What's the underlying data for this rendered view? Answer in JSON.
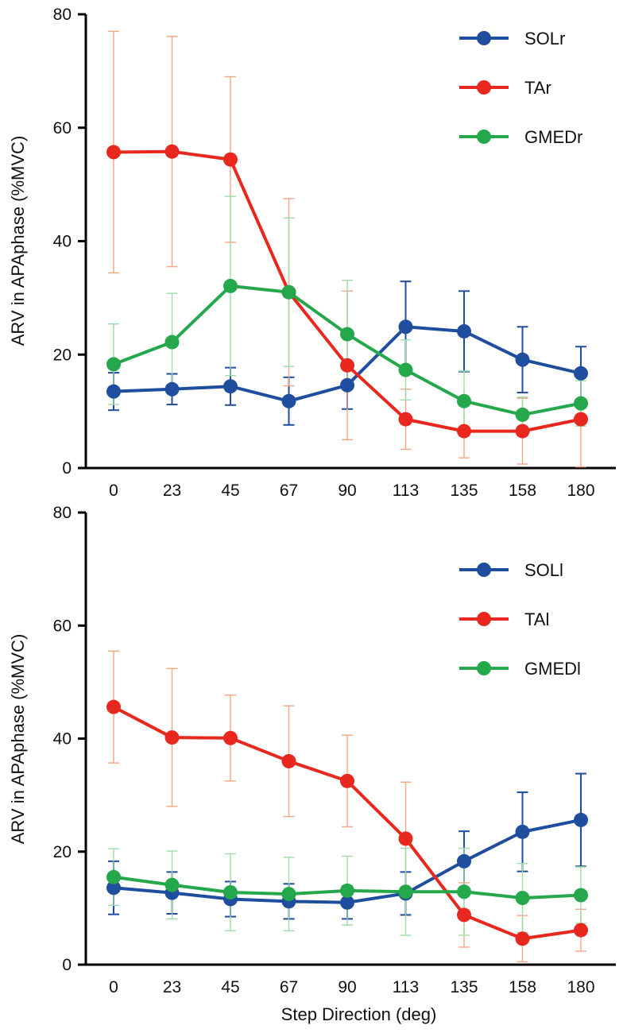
{
  "chart_data": [
    {
      "type": "line",
      "title": "",
      "xlabel": "",
      "ylabel": "ARV in APAphase (%MVC)",
      "categories": [
        "0",
        "23",
        "45",
        "67",
        "90",
        "113",
        "135",
        "158",
        "180"
      ],
      "ylim": [
        0,
        80
      ],
      "yticks": [
        0,
        20,
        40,
        60,
        80
      ],
      "legend_position": "top-right",
      "series": [
        {
          "name": "SOLr",
          "color": "#1f4e9e",
          "values": [
            13.5,
            13.9,
            14.4,
            11.8,
            14.6,
            24.9,
            24.1,
            19.1,
            16.7
          ],
          "errors": [
            3.3,
            2.7,
            3.3,
            4.2,
            4.2,
            8.0,
            7.1,
            5.8,
            4.7
          ]
        },
        {
          "name": "TAr",
          "color": "#e8281e",
          "values": [
            55.7,
            55.8,
            54.4,
            31.0,
            18.1,
            8.6,
            6.5,
            6.5,
            8.6
          ],
          "errors": [
            21.3,
            20.3,
            14.6,
            16.5,
            13.1,
            5.3,
            4.7,
            5.8,
            8.4
          ],
          "error_bar_color": "#f4a582"
        },
        {
          "name": "GMEDr",
          "color": "#25a84b",
          "values": [
            18.3,
            22.2,
            32.1,
            31.0,
            23.6,
            17.3,
            11.8,
            9.4,
            11.4
          ],
          "errors": [
            7.1,
            8.6,
            15.8,
            13.1,
            9.5,
            5.3,
            5.3,
            3.1,
            4.0
          ],
          "error_bar_color": "#9fdba8"
        }
      ]
    },
    {
      "type": "line",
      "title": "",
      "xlabel": "Step Direction (deg)",
      "ylabel": "ARV in APAphase (%MVC)",
      "categories": [
        "0",
        "23",
        "45",
        "67",
        "90",
        "113",
        "135",
        "158",
        "180"
      ],
      "ylim": [
        0,
        80
      ],
      "yticks": [
        0,
        20,
        40,
        60,
        80
      ],
      "legend_position": "top-right",
      "series": [
        {
          "name": "SOLl",
          "color": "#1f4e9e",
          "values": [
            13.6,
            12.7,
            11.6,
            11.2,
            11.0,
            12.6,
            18.3,
            23.5,
            25.6
          ],
          "errors": [
            4.7,
            3.7,
            3.1,
            3.1,
            2.9,
            3.8,
            5.3,
            7.0,
            8.2
          ]
        },
        {
          "name": "TAl",
          "color": "#e8281e",
          "values": [
            45.6,
            40.2,
            40.1,
            36.0,
            32.5,
            22.3,
            8.8,
            4.6,
            6.1
          ],
          "errors": [
            9.9,
            12.2,
            7.6,
            9.8,
            8.1,
            10.0,
            5.7,
            4.1,
            3.7
          ],
          "error_bar_color": "#f4a582"
        },
        {
          "name": "GMEDl",
          "color": "#25a84b",
          "values": [
            15.5,
            14.1,
            12.8,
            12.5,
            13.1,
            12.9,
            12.9,
            11.8,
            12.3
          ],
          "errors": [
            5.0,
            6.0,
            6.8,
            6.5,
            6.1,
            7.7,
            7.7,
            6.1,
            5.0
          ],
          "error_bar_color": "#9fdba8"
        }
      ]
    }
  ]
}
